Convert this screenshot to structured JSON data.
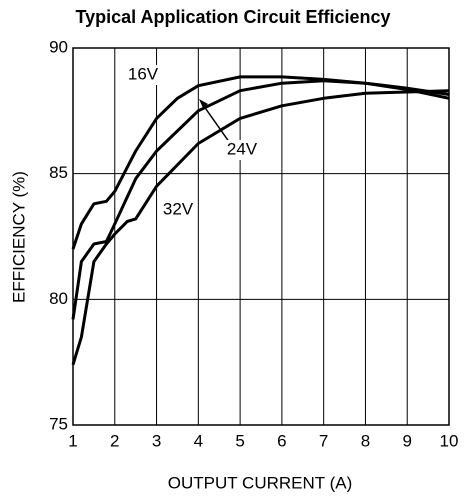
{
  "chart_data": {
    "type": "line",
    "title": "Typical Application Circuit Efficiency",
    "xlabel": "OUTPUT CURRENT (A)",
    "ylabel": "EFFICIENCY (%)",
    "xlim": [
      1,
      10
    ],
    "ylim": [
      75,
      90
    ],
    "xticks": [
      1,
      2,
      3,
      4,
      5,
      6,
      7,
      8,
      9,
      10
    ],
    "yticks": [
      75,
      80,
      85,
      90
    ],
    "grid": true,
    "series": [
      {
        "name": "16V",
        "color": "#000000",
        "x": [
          1,
          1.2,
          1.5,
          1.8,
          2,
          2.5,
          3,
          3.5,
          4,
          5,
          6,
          7,
          8,
          9,
          10
        ],
        "values": [
          82,
          83,
          83.8,
          83.9,
          84.3,
          85.9,
          87.2,
          88,
          88.5,
          88.85,
          88.85,
          88.75,
          88.6,
          88.35,
          88.0
        ]
      },
      {
        "name": "24V",
        "color": "#000000",
        "x": [
          1,
          1.2,
          1.5,
          1.8,
          2,
          2.5,
          3,
          4,
          5,
          6,
          7,
          8,
          9,
          10
        ],
        "values": [
          79.2,
          81.5,
          82.2,
          82.3,
          83,
          84.8,
          85.9,
          87.5,
          88.3,
          88.6,
          88.7,
          88.6,
          88.4,
          88.15
        ]
      },
      {
        "name": "32V",
        "color": "#000000",
        "x": [
          1,
          1.2,
          1.5,
          1.8,
          2,
          2.3,
          2.5,
          3,
          4,
          5,
          6,
          7,
          8,
          9,
          10
        ],
        "values": [
          77.4,
          78.5,
          81.5,
          82.2,
          82.6,
          83.1,
          83.2,
          84.5,
          86.2,
          87.2,
          87.7,
          88,
          88.2,
          88.25,
          88.3
        ]
      }
    ]
  }
}
